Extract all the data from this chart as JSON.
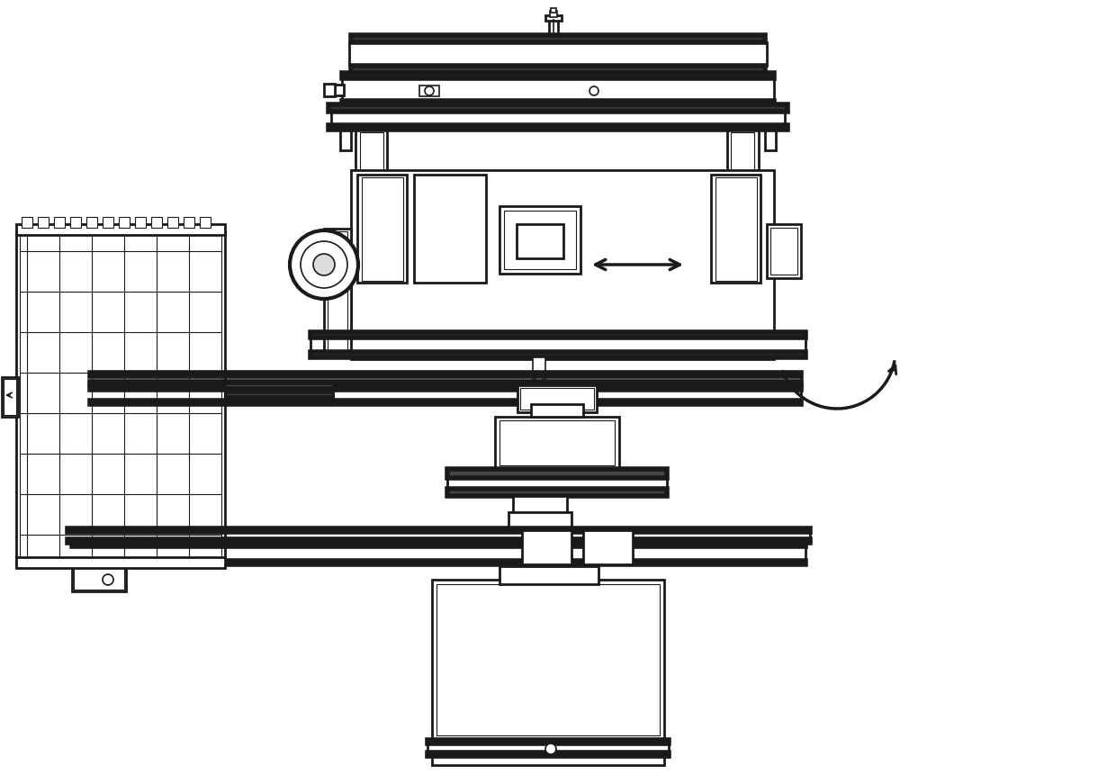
{
  "bg_color": "#ffffff",
  "line_color": "#1a1a1a",
  "lw_thick": 4.0,
  "lw_med": 2.0,
  "lw_thin": 1.2,
  "lw_hair": 0.8,
  "figsize": [
    12.4,
    8.62
  ],
  "dpi": 100
}
